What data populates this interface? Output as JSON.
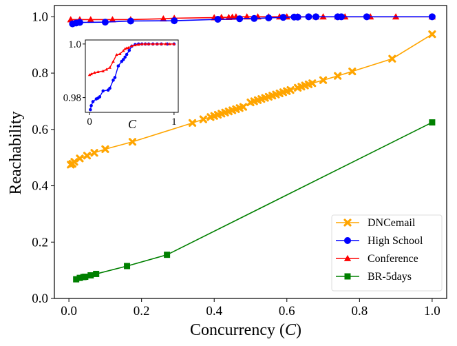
{
  "chart_data": {
    "type": "line",
    "xlabel_prefix": "Concurrency (",
    "xlabel_var": "C",
    "xlabel_suffix": ")",
    "ylabel": "Reachability",
    "xlim": [
      -0.04,
      1.04
    ],
    "ylim": [
      0.0,
      1.04
    ],
    "x_ticks": [
      0.0,
      0.2,
      0.4,
      0.6,
      0.8,
      1.0
    ],
    "x_tick_labels": [
      "0.0",
      "0.2",
      "0.4",
      "0.6",
      "0.8",
      "1.0"
    ],
    "y_ticks": [
      0.0,
      0.2,
      0.4,
      0.6,
      0.8,
      1.0
    ],
    "y_tick_labels": [
      "0.0",
      "0.2",
      "0.4",
      "0.6",
      "0.8",
      "1.0"
    ],
    "legend_position": "bottom-right",
    "series": [
      {
        "name": "DNCemail",
        "color": "#ffa500",
        "marker": "x",
        "x": [
          0.005,
          0.01,
          0.015,
          0.03,
          0.05,
          0.07,
          0.1,
          0.175,
          0.34,
          0.37,
          0.39,
          0.4,
          0.41,
          0.42,
          0.43,
          0.44,
          0.45,
          0.46,
          0.47,
          0.48,
          0.5,
          0.51,
          0.52,
          0.53,
          0.54,
          0.55,
          0.56,
          0.57,
          0.58,
          0.59,
          0.6,
          0.61,
          0.63,
          0.64,
          0.65,
          0.66,
          0.67,
          0.7,
          0.74,
          0.78,
          0.89,
          1.0
        ],
        "y": [
          0.475,
          0.478,
          0.485,
          0.497,
          0.507,
          0.517,
          0.53,
          0.556,
          0.623,
          0.636,
          0.644,
          0.648,
          0.652,
          0.656,
          0.66,
          0.664,
          0.668,
          0.672,
          0.676,
          0.68,
          0.696,
          0.7,
          0.704,
          0.708,
          0.712,
          0.716,
          0.72,
          0.724,
          0.728,
          0.732,
          0.736,
          0.74,
          0.748,
          0.752,
          0.756,
          0.76,
          0.764,
          0.775,
          0.79,
          0.806,
          0.851,
          0.938
        ]
      },
      {
        "name": "High School",
        "color": "#0000ff",
        "marker": "o",
        "x": [
          0.01,
          0.02,
          0.03,
          0.1,
          0.17,
          0.29,
          0.41,
          0.47,
          0.51,
          0.55,
          0.59,
          0.62,
          0.63,
          0.66,
          0.68,
          0.74,
          0.75,
          0.82,
          1.0
        ],
        "y": [
          0.975,
          0.978,
          0.98,
          0.981,
          0.985,
          0.986,
          0.991,
          0.993,
          0.994,
          0.996,
          0.998,
          0.999,
          0.999,
          1.0,
          1.0,
          1.0,
          1.0,
          1.0,
          1.0
        ]
      },
      {
        "name": "Conference",
        "color": "#ff0000",
        "marker": "^",
        "x": [
          0.005,
          0.03,
          0.06,
          0.12,
          0.17,
          0.26,
          0.29,
          0.4,
          0.42,
          0.44,
          0.45,
          0.46,
          0.49,
          0.52,
          0.55,
          0.58,
          0.6,
          0.63,
          0.68,
          0.7,
          0.74,
          0.76,
          0.83,
          0.9,
          1.0
        ],
        "y": [
          0.99,
          0.99,
          0.99,
          0.99,
          0.99,
          0.993,
          0.995,
          0.997,
          0.998,
          0.998,
          0.999,
          1.0,
          1.0,
          1.0,
          1.0,
          1.0,
          1.0,
          1.0,
          1.0,
          1.0,
          1.0,
          1.0,
          1.0,
          1.0,
          1.0
        ]
      },
      {
        "name": "BR-5days",
        "color": "#008000",
        "marker": "s",
        "x": [
          0.02,
          0.03,
          0.04,
          0.045,
          0.06,
          0.075,
          0.16,
          0.27,
          1.0
        ],
        "y": [
          0.068,
          0.073,
          0.076,
          0.077,
          0.082,
          0.087,
          0.115,
          0.155,
          0.625
        ]
      }
    ],
    "inset": {
      "xlabel": "C",
      "xlim": [
        -0.05,
        1.05
      ],
      "ylim": [
        0.9745,
        1.0015
      ],
      "x_ticks": [
        0,
        1
      ],
      "x_tick_labels": [
        "0",
        "1"
      ],
      "y_ticks": [
        0.98,
        1.0
      ],
      "y_tick_labels": [
        "0.98",
        "1.0"
      ],
      "series": [
        {
          "name": "High School",
          "color": "#0000ff",
          "x": [
            0.01,
            0.02,
            0.04,
            0.08,
            0.1,
            0.12,
            0.16,
            0.22,
            0.24,
            0.28,
            0.3,
            0.34,
            0.38,
            0.4,
            0.42,
            0.44,
            0.47,
            0.5,
            0.54,
            0.58,
            0.62,
            0.66,
            0.7,
            0.75,
            0.8,
            0.85,
            0.92,
            1.0
          ],
          "y": [
            0.9755,
            0.977,
            0.9785,
            0.9795,
            0.9798,
            0.9803,
            0.9825,
            0.9828,
            0.9835,
            0.9865,
            0.9875,
            0.9918,
            0.9935,
            0.9942,
            0.9951,
            0.9961,
            0.9976,
            0.9992,
            0.9998,
            1.0,
            1.0,
            1.0,
            1.0,
            1.0,
            1.0,
            1.0,
            1.0,
            1.0
          ]
        },
        {
          "name": "Conference",
          "color": "#ff0000",
          "x": [
            0.0,
            0.02,
            0.06,
            0.1,
            0.16,
            0.2,
            0.24,
            0.28,
            0.32,
            0.36,
            0.4,
            0.42,
            0.44,
            0.46,
            0.5,
            0.54,
            0.58,
            0.62,
            0.66,
            0.7,
            0.75,
            0.8,
            0.85,
            0.9,
            0.95,
            1.0
          ],
          "y": [
            0.9885,
            0.9888,
            0.9893,
            0.9896,
            0.9899,
            0.9905,
            0.9912,
            0.9935,
            0.996,
            0.9963,
            0.9975,
            0.9982,
            0.9985,
            0.9986,
            0.9993,
            0.9996,
            0.9998,
            1.0,
            1.0,
            1.0,
            1.0,
            1.0,
            1.0,
            1.0,
            1.0,
            1.0
          ]
        }
      ]
    }
  }
}
